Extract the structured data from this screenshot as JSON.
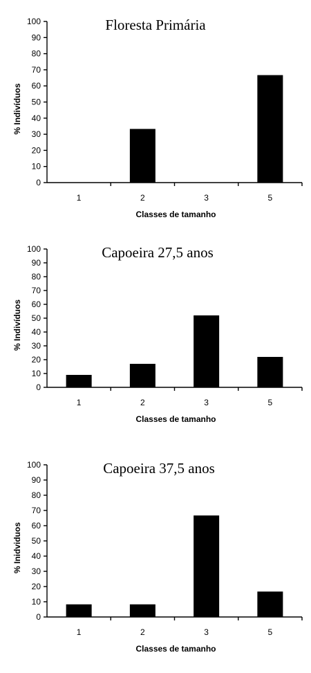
{
  "chart_data": [
    {
      "type": "bar",
      "title": "Floresta Primária",
      "xlabel": "Classes de tamanho",
      "ylabel": "% Indivíduos",
      "categories": [
        "1",
        "2",
        "3",
        "5"
      ],
      "values": [
        0,
        33.3,
        0,
        66.7
      ],
      "ylim": [
        0,
        100
      ],
      "yticks": [
        0,
        10,
        20,
        30,
        40,
        50,
        60,
        70,
        80,
        90,
        100
      ],
      "grid": false,
      "bar_color": "#000000"
    },
    {
      "type": "bar",
      "title": "Capoeira 27,5 anos",
      "xlabel": "Classes de tamanho",
      "ylabel": "% Indivíduos",
      "categories": [
        "1",
        "2",
        "3",
        "5"
      ],
      "values": [
        9,
        17,
        52,
        22
      ],
      "ylim": [
        0,
        100
      ],
      "yticks": [
        0,
        10,
        20,
        30,
        40,
        50,
        60,
        70,
        80,
        90,
        100
      ],
      "grid": false,
      "bar_color": "#000000"
    },
    {
      "type": "bar",
      "title": "Capoeira 37,5 anos",
      "xlabel": "Classes de tamanho",
      "ylabel": "% Inidviduos",
      "categories": [
        "1",
        "2",
        "3",
        "5"
      ],
      "values": [
        8.3,
        8.3,
        66.7,
        16.7
      ],
      "ylim": [
        0,
        100
      ],
      "yticks": [
        0,
        10,
        20,
        30,
        40,
        50,
        60,
        70,
        80,
        90,
        100
      ],
      "grid": false,
      "bar_color": "#000000"
    }
  ]
}
